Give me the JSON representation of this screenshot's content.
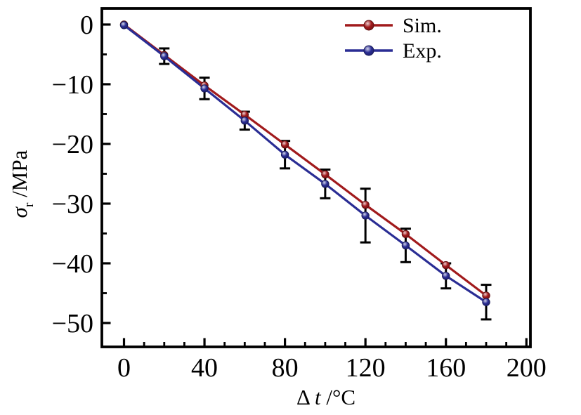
{
  "figure": {
    "background": "#ffffff",
    "frame_color": "#000000",
    "tick_color": "#000000",
    "text_color": "#000000"
  },
  "chart_data": {
    "type": "line",
    "title": "",
    "x": [
      0,
      20,
      40,
      60,
      80,
      100,
      120,
      140,
      160,
      180
    ],
    "series": [
      {
        "name": "Sim.",
        "color": "#a11a1c",
        "marker": "ball",
        "values": [
          0,
          -5.1,
          -10.2,
          -15.1,
          -20.1,
          -25.1,
          -30.2,
          -35.1,
          -40.3,
          -45.4
        ]
      },
      {
        "name": "Exp.",
        "color": "#2a2d94",
        "marker": "ball",
        "values": [
          -0.1,
          -5.3,
          -10.7,
          -16.1,
          -21.8,
          -26.7,
          -32.0,
          -37.0,
          -42.1,
          -46.5
        ],
        "error_bars": [
          0,
          1.3,
          1.8,
          1.5,
          2.3,
          2.4,
          4.5,
          2.8,
          2.1,
          2.9
        ],
        "error_bar_color": "#000000"
      }
    ],
    "xlabel": {
      "text": "Δ t /°C",
      "parts": [
        {
          "t": "Δ ",
          "style": "normal"
        },
        {
          "t": "t",
          "style": "italic"
        },
        {
          "t": " /°C",
          "style": "normal"
        }
      ]
    },
    "ylabel": {
      "text": "σr /MPa",
      "parts": [
        {
          "t": "σ",
          "style": "italic"
        },
        {
          "t": "r",
          "style": "sub"
        },
        {
          "t": " /MPa",
          "style": "normal"
        }
      ]
    },
    "xlim": [
      -11,
      202
    ],
    "ylim": [
      -54,
      2.7
    ],
    "x_ticks": {
      "major": [
        0,
        40,
        80,
        120,
        160,
        200
      ],
      "labels": [
        "0",
        "40",
        "80",
        "120",
        "160",
        "200"
      ],
      "minor_step": 10
    },
    "y_ticks": {
      "major": [
        0,
        -10,
        -20,
        -30,
        -40,
        -50
      ],
      "labels": [
        "0",
        "−10",
        "−20",
        "−30",
        "−40",
        "−50"
      ],
      "minor_step": 5
    },
    "grid": false,
    "legend": {
      "position": "top-right",
      "entries": [
        "Sim.",
        "Exp."
      ]
    }
  }
}
